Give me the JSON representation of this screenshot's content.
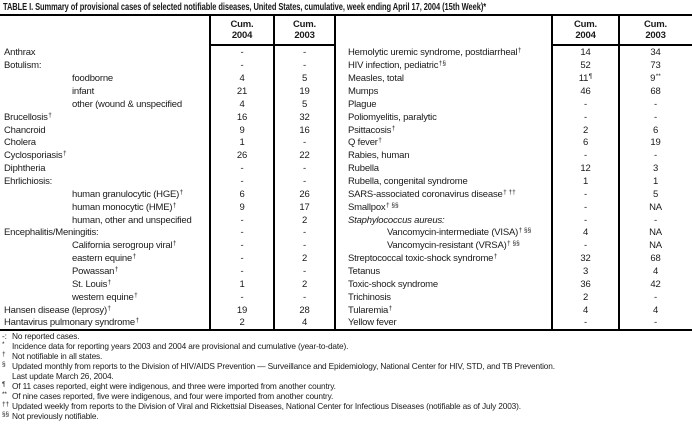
{
  "title": "TABLE I. Summary of provisional cases of selected notifiable diseases, United States, cumulative, week ending April 17, 2004 (15th Week)*",
  "columns": {
    "cum_label": "Cum.",
    "year_2004": "2004",
    "year_2003": "2003"
  },
  "left_rows": [
    {
      "label": "Anthrax",
      "v04": "-",
      "v03": "-"
    },
    {
      "label": "Botulism:",
      "v04": "-",
      "v03": "-"
    },
    {
      "label": "foodborne",
      "indent": 1,
      "v04": "4",
      "v03": "5"
    },
    {
      "label": "infant",
      "indent": 1,
      "v04": "21",
      "v03": "19"
    },
    {
      "label": "other (wound & unspecified",
      "indent": 1,
      "v04": "4",
      "v03": "5"
    },
    {
      "label": "Brucellosis",
      "sup": "†",
      "v04": "16",
      "v03": "32"
    },
    {
      "label": "Chancroid",
      "v04": "9",
      "v03": "16"
    },
    {
      "label": "Cholera",
      "v04": "1",
      "v03": "-"
    },
    {
      "label": "Cyclosporiasis",
      "sup": "†",
      "v04": "26",
      "v03": "22"
    },
    {
      "label": "Diphtheria",
      "v04": "-",
      "v03": "-"
    },
    {
      "label": "Ehrlichiosis:",
      "v04": "-",
      "v03": "-"
    },
    {
      "label": "human granulocytic (HGE)",
      "sup": "†",
      "indent": 1,
      "v04": "6",
      "v03": "26"
    },
    {
      "label": "human monocytic (HME)",
      "sup": "†",
      "indent": 1,
      "v04": "9",
      "v03": "17"
    },
    {
      "label": "human, other and unspecified",
      "indent": 1,
      "v04": "-",
      "v03": "2"
    },
    {
      "label": "Encephalitis/Meningitis:",
      "v04": "-",
      "v03": "-"
    },
    {
      "label": "California serogroup viral",
      "sup": "†",
      "indent": 1,
      "v04": "-",
      "v03": "-"
    },
    {
      "label": "eastern equine",
      "sup": "†",
      "indent": 1,
      "v04": "-",
      "v03": "2"
    },
    {
      "label": "Powassan",
      "sup": "†",
      "indent": 1,
      "v04": "-",
      "v03": "-"
    },
    {
      "label": "St. Louis",
      "sup": "†",
      "indent": 1,
      "v04": "1",
      "v03": "2"
    },
    {
      "label": "western equine",
      "sup": "†",
      "indent": 1,
      "v04": "-",
      "v03": "-"
    },
    {
      "label": "Hansen disease (leprosy)",
      "sup": "†",
      "v04": "19",
      "v03": "28"
    },
    {
      "label": "Hantavirus pulmonary syndrome",
      "sup": "†",
      "v04": "2",
      "v03": "4"
    }
  ],
  "right_rows": [
    {
      "label": "Hemolytic uremic syndrome, postdiarrheal",
      "sup": "†",
      "v04": "14",
      "v03": "34"
    },
    {
      "label": "HIV infection, pediatric",
      "sup": "†§",
      "v04": "52",
      "v03": "73"
    },
    {
      "label": "Measles, total",
      "v04": "11",
      "v04sup": "¶",
      "v03": "9",
      "v03sup": "**"
    },
    {
      "label": "Mumps",
      "v04": "46",
      "v03": "68"
    },
    {
      "label": "Plague",
      "v04": "-",
      "v03": "-"
    },
    {
      "label": "Poliomyelitis, paralytic",
      "v04": "-",
      "v03": "-"
    },
    {
      "label": "Psittacosis",
      "sup": "†",
      "v04": "2",
      "v03": "6"
    },
    {
      "label": "Q fever",
      "sup": "†",
      "v04": "6",
      "v03": "19"
    },
    {
      "label": "Rabies, human",
      "v04": "-",
      "v03": "-"
    },
    {
      "label": "Rubella",
      "v04": "12",
      "v03": "3"
    },
    {
      "label": "Rubella, congenital syndrome",
      "v04": "1",
      "v03": "1"
    },
    {
      "label": "SARS-associated coronavirus disease",
      "sup": "† ††",
      "v04": "-",
      "v03": "5"
    },
    {
      "label": "Smallpox",
      "sup": "† §§",
      "v04": "-",
      "v03": "NA"
    },
    {
      "label": "Staphylococcus aureus:",
      "italic": true,
      "v04": "-",
      "v03": "-"
    },
    {
      "label": "Vancomycin-intermediate (VISA)",
      "sup": "† §§",
      "indent": 1,
      "v04": "4",
      "v03": "NA"
    },
    {
      "label": "Vancomycin-resistant (VRSA)",
      "sup": "† §§",
      "indent": 1,
      "v04": "-",
      "v03": "NA"
    },
    {
      "label": "Streptococcal toxic-shock syndrome",
      "sup": "†",
      "v04": "32",
      "v03": "68"
    },
    {
      "label": "Tetanus",
      "v04": "3",
      "v03": "4"
    },
    {
      "label": "Toxic-shock syndrome",
      "v04": "36",
      "v03": "42"
    },
    {
      "label": "Trichinosis",
      "v04": "2",
      "v03": "-"
    },
    {
      "label": "Tularemia",
      "sup": "†",
      "v04": "4",
      "v03": "4"
    },
    {
      "label": "Yellow fever",
      "v04": "-",
      "v03": "-"
    }
  ],
  "footnotes": [
    {
      "sym": "-:",
      "sup": false,
      "text": "No reported cases."
    },
    {
      "sym": "*",
      "sup": true,
      "text": "Incidence data for reporting years 2003 and 2004 are provisional and cumulative (year-to-date)."
    },
    {
      "sym": "†",
      "sup": true,
      "text": "Not notifiable in all states."
    },
    {
      "sym": "§",
      "sup": true,
      "text": "Updated monthly from reports to the Division of HIV/AIDS Prevention — Surveillance and Epidemiology, National Center for HIV, STD, and TB Prevention."
    },
    {
      "sym": "",
      "sup": false,
      "text": "Last update March 26, 2004."
    },
    {
      "sym": "¶",
      "sup": true,
      "text": "Of 11 cases reported, eight were indigenous, and three were imported from another country."
    },
    {
      "sym": "**",
      "sup": true,
      "text": "Of nine cases reported, five were indigenous, and four were imported from another country."
    },
    {
      "sym": "††",
      "sup": true,
      "text": "Updated weekly from reports to the Division of Viral and Rickettsial Diseases, National Center for Infectious Diseases (notifiable as of July 2003)."
    },
    {
      "sym": "§§",
      "sup": true,
      "text": "Not previously notifiable."
    }
  ]
}
